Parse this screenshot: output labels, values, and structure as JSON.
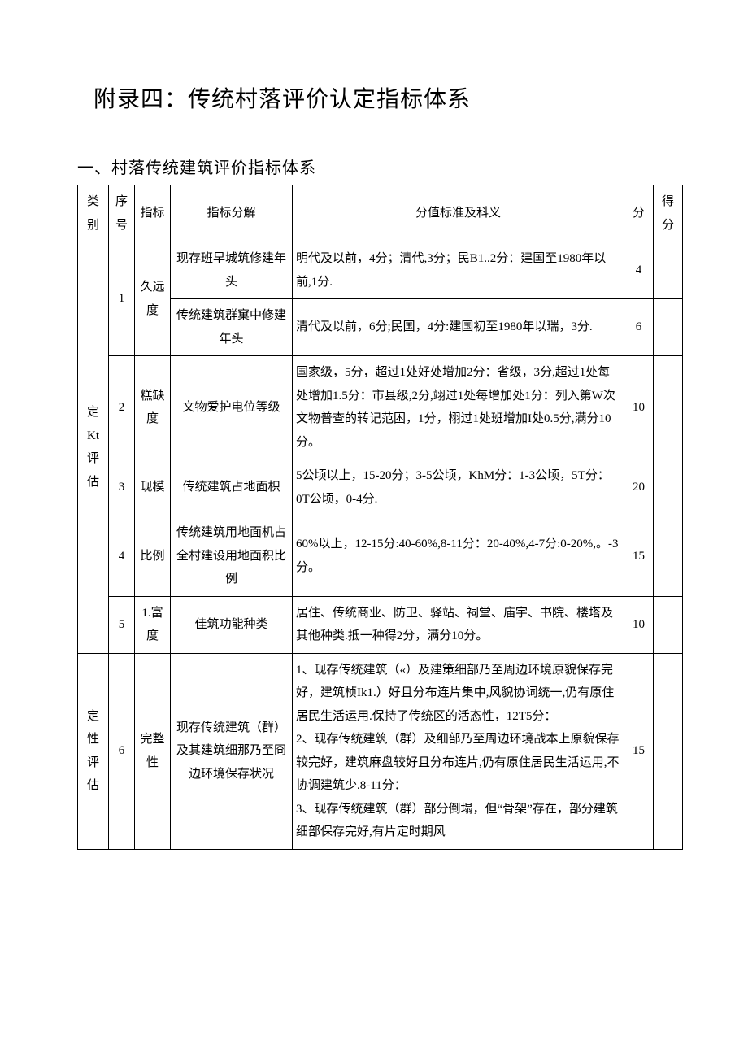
{
  "title": "附录四：传统村落评价认定指标体系",
  "section1": {
    "heading": "一、村落传统建筑评价指标体系",
    "header": {
      "category": "类别",
      "no": "序号",
      "indicator": "指标",
      "subindicator": "指标分解",
      "standard": "分值标准及科义",
      "points": "分",
      "score": "得分"
    },
    "cat_quant": "定Kt评估",
    "cat_qual": "定性评估",
    "rows": [
      {
        "no": "1",
        "indicator": "久远度",
        "sub_a": "现存班早城筑修建年头",
        "std_a": "明代及以前，4分；清代,3分；民B1..2分：建国至1980年以前,1分.",
        "pts_a": "4",
        "sub_b": "传统建筑群窠中修建年头",
        "std_b": "清代及以前，6分;民国，4分:建国初至1980年以瑞，3分.",
        "pts_b": "6"
      },
      {
        "no": "2",
        "indicator": "糕缺度",
        "sub": "文物爱护电位等级",
        "std": "国家级，5分，超过1处好处增加2分：省级，3分,超过1处每处增加1.5分：市县级,2分,翊过1处每增加处1分：列入第W次文物普查的转记范困，1分，栩过1处班增加I处0.5分,满分10分。",
        "pts": "10"
      },
      {
        "no": "3",
        "indicator": "现模",
        "sub": "传统建筑占地面枳",
        "std": "5公顷以上，15-20分；3-5公顷，KhM分：1-3公顷，5T分：0T公顷，0-4分.",
        "pts": "20"
      },
      {
        "no": "4",
        "indicator": "比例",
        "sub": "传统建筑用地面机占全村建设用地面积比例",
        "std": "60%以上，12-15分:40-60%,8-11分：20-40%,4-7分:0-20%,。-3分。",
        "pts": "15"
      },
      {
        "no": "5",
        "indicator": "1.富度",
        "sub": "佳筑功能种类",
        "std": "居住、传统商业、防卫、驿站、祠堂、庙宇、书院、楼塔及其他种类.抵一种得2分，满分10分。",
        "pts": "10"
      },
      {
        "no": "6",
        "indicator": "完整性",
        "sub": "现存传统建筑（群）及其建筑细那乃至冏边环境保存状况",
        "std": "1、现存传统建筑（«）及建策细部乃至周边环境原貌保存完好，建筑桢Ik1.）好且分布连片集中,风貌协词统一,仍有原住居民生活运用.保持了传统区的活态性，12T5分：\n2、现存传统建筑（群）及细部乃至周边环境战本上原貌保存较完好，建筑麻盘较好且分布连片,仍有原住居民生活运用,不协调建筑少.8-11分：\n3、现存传统建筑（群）部分倒塌，但“骨架”存在，部分建筑细部保存完好,有片定时期风",
        "pts": "15"
      }
    ]
  }
}
